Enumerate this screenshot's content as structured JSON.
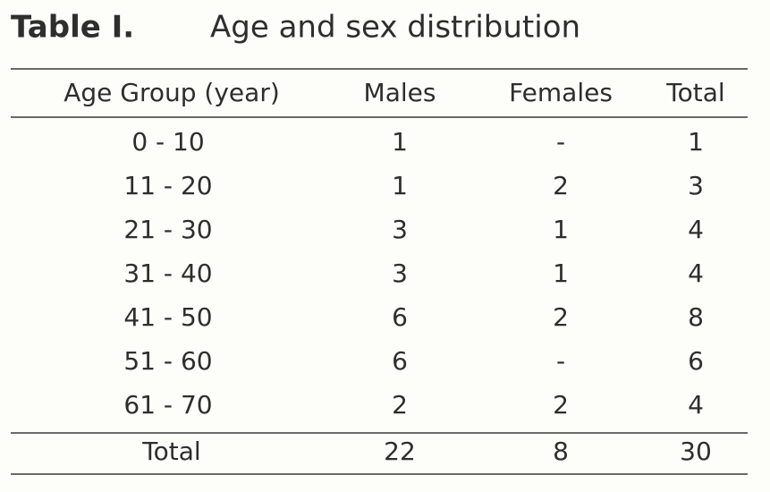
{
  "header": {
    "label": "Table I.",
    "title": "Age and sex distribution"
  },
  "table": {
    "columns": [
      "Age Group (year)",
      "Males",
      "Females",
      "Total"
    ],
    "rows": [
      [
        "0 - 10",
        "1",
        "-",
        "1"
      ],
      [
        "11 - 20",
        "1",
        "2",
        "3"
      ],
      [
        "21 - 30",
        "3",
        "1",
        "4"
      ],
      [
        "31 - 40",
        "3",
        "1",
        "4"
      ],
      [
        "41 - 50",
        "6",
        "2",
        "8"
      ],
      [
        "51 - 60",
        "6",
        "-",
        "6"
      ],
      [
        "61 - 70",
        "2",
        "2",
        "4"
      ]
    ],
    "total": [
      "Total",
      "22",
      "8",
      "30"
    ]
  }
}
